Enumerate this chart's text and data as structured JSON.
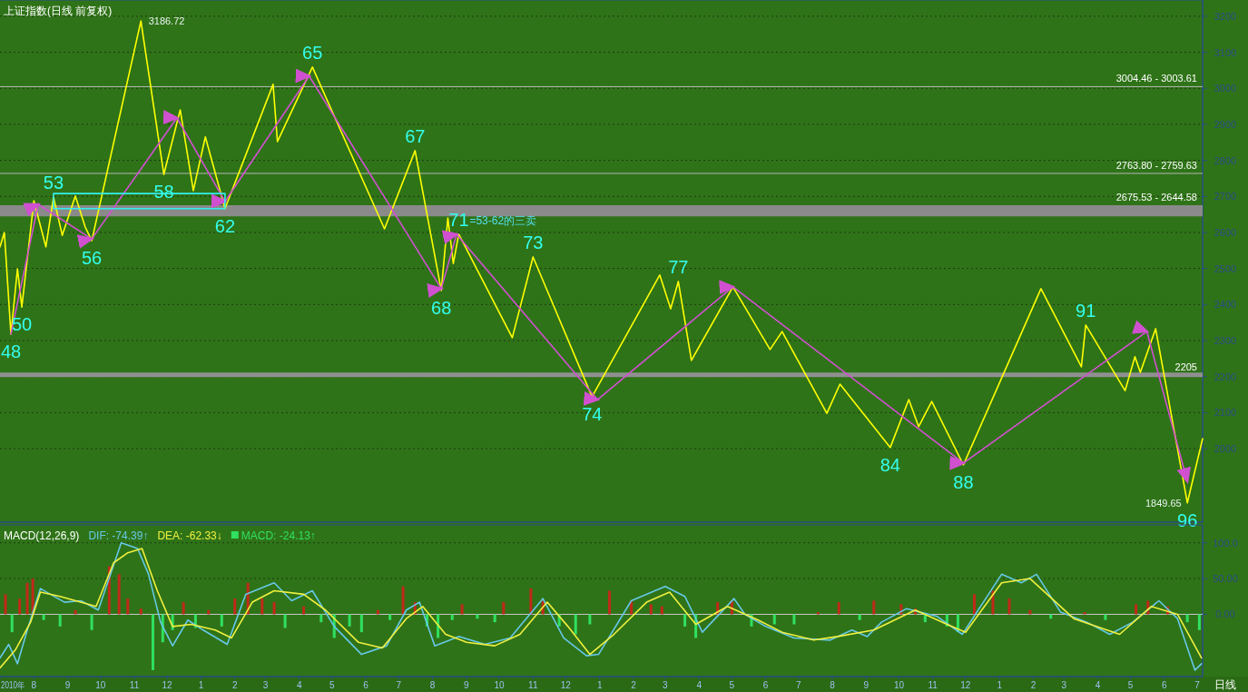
{
  "chart_data": [
    {
      "type": "line",
      "title": "上证指数(日线 前复权)",
      "xlim": [
        "2010-07-01",
        "2013-07-06"
      ],
      "ylim": [
        1796,
        3245
      ],
      "yticks": [
        2000,
        2100,
        2200,
        2300,
        2400,
        2500,
        2600,
        2700,
        2800,
        2900,
        3000,
        3100,
        3200
      ],
      "grid": "y",
      "tick_labels": "y",
      "series": [
        {
          "color": "#ffff00",
          "x": [
            "2010-07-01",
            "2010-07-05",
            "2010-07-11",
            "2010-07-17",
            "2010-07-21",
            "2010-08-01",
            "2010-08-12",
            "2010-08-19",
            "2010-08-27",
            "2010-09-08",
            "2010-09-17",
            "2010-09-23",
            "2010-11-07",
            "2010-11-28",
            "2010-12-13",
            "2010-12-25",
            "2011-01-05",
            "2011-01-23",
            "2011-03-08",
            "2011-03-12",
            "2011-04-13",
            "2011-06-18",
            "2011-07-16",
            "2011-08-09",
            "2011-08-15",
            "2011-08-20",
            "2011-08-25",
            "2011-10-13",
            "2011-11-01",
            "2011-12-25",
            "2012-02-25",
            "2012-03-06",
            "2012-03-13",
            "2012-03-25",
            "2012-05-02",
            "2012-06-05",
            "2012-06-16",
            "2012-07-27",
            "2012-08-08",
            "2012-09-23",
            "2012-10-10",
            "2012-10-19",
            "2012-10-31",
            "2012-11-29",
            "2013-02-08",
            "2013-03-17",
            "2013-03-21",
            "2013-04-26",
            "2013-05-05",
            "2013-05-10",
            "2013-05-24",
            "2013-06-22",
            "2013-07-06"
          ],
          "values": [
            2560,
            2600,
            2318,
            2499,
            2393,
            2688,
            2560,
            2698,
            2592,
            2701,
            2615,
            2577,
            3186.72,
            2761,
            2940,
            2716,
            2865,
            2666,
            3011,
            2852,
            3059,
            2610,
            2827,
            2439,
            2640,
            2514,
            2595,
            2308,
            2532,
            2144,
            2482,
            2388,
            2464,
            2245,
            2449,
            2275,
            2325,
            2098,
            2179,
            2003,
            2136,
            2061,
            2131,
            1955,
            2444,
            2227,
            2343,
            2161,
            2255,
            2212,
            2333,
            1849.65,
            2028
          ]
        },
        {
          "color": "#d050d0",
          "x": [
            "2010-07-11",
            "2010-08-05",
            "2010-09-23",
            "2010-12-10",
            "2011-01-23",
            "2011-04-10",
            "2011-08-09",
            "2011-08-23",
            "2011-12-30",
            "2012-05-02",
            "2012-11-29",
            "2013-05-16",
            "2013-06-22"
          ],
          "values": [
            2318,
            2678,
            2582,
            2918,
            2686,
            3034,
            2444,
            2595,
            2136,
            2449,
            1960,
            2325,
            1909
          ]
        },
        {
          "color": "#33eeee",
          "x": [
            "2010-08-19",
            "2011-01-23"
          ],
          "values": [
            2708,
            2708
          ]
        },
        {
          "color": "#33eeee",
          "x": [
            "2010-08-19",
            "2011-01-23"
          ],
          "values": [
            2666,
            2666
          ]
        }
      ],
      "ref_lines": [
        {
          "axis": "y",
          "value": 3004.46,
          "label": "3004.46 - 3003.61",
          "color": "#b8b8b8"
        },
        {
          "axis": "y",
          "value": 2763.8,
          "label": "2763.80 - 2759.63",
          "color": "#b8b8b8"
        },
        {
          "axis": "y",
          "value": 2205,
          "label": "2205",
          "color": "#909090"
        }
      ],
      "bands": [
        {
          "axis": "y",
          "from": 2644.58,
          "to": 2675.53,
          "label": "2675.53 - 2644.58",
          "color": "#8a8a8a"
        }
      ],
      "annotations": [
        {
          "text": "48",
          "x": "2010-07-11",
          "y": 2318
        },
        {
          "text": "50",
          "x": "2010-07-21",
          "y": 2393
        },
        {
          "text": "53",
          "x": "2010-08-19",
          "y": 2698
        },
        {
          "text": "56",
          "x": "2010-09-23",
          "y": 2577
        },
        {
          "text": "58",
          "x": "2010-11-28",
          "y": 2761
        },
        {
          "text": "62",
          "x": "2011-01-23",
          "y": 2666
        },
        {
          "text": "65",
          "x": "2011-04-13",
          "y": 3059
        },
        {
          "text": "67",
          "x": "2011-07-16",
          "y": 2827
        },
        {
          "text": "68",
          "x": "2011-08-09",
          "y": 2439
        },
        {
          "text": "71",
          "x": "2011-08-25",
          "y": 2595
        },
        "=53-62的三卖",
        {
          "text": "73",
          "x": "2011-11-01",
          "y": 2532
        },
        {
          "text": "74",
          "x": "2011-12-25",
          "y": 2144
        },
        {
          "text": "77",
          "x": "2012-03-13",
          "y": 2464
        },
        {
          "text": "84",
          "x": "2012-09-23",
          "y": 2003
        },
        {
          "text": "88",
          "x": "2012-11-29",
          "y": 1955
        },
        {
          "text": "91",
          "x": "2013-03-21",
          "y": 2343
        },
        {
          "text": "96",
          "x": "2013-06-22",
          "y": 1849.65
        },
        {
          "text": "3186.72",
          "x": "2010-11-09",
          "y": 3186.72
        },
        {
          "text": "1849.65",
          "x": "2013-06-20",
          "y": 1849.65
        }
      ]
    },
    {
      "type": "line",
      "title": "MACD(12,26,9)",
      "xlim": [
        "2010-07-01",
        "2013-07-06"
      ],
      "ylim": [
        -87,
        125
      ],
      "yticks": [
        {
          "value": 0,
          "label": "0.00"
        },
        {
          "value": 50,
          "label": "50.00"
        },
        {
          "value": 100,
          "label": "100.0"
        }
      ],
      "grid": "y",
      "legend": "top left",
      "annotations": [
        "日线"
      ],
      "xticks": [
        {
          "value": "2010-07-01",
          "label": "2010年"
        },
        {
          "value": "2010-08-01",
          "label": "8"
        },
        {
          "value": "2010-09-01",
          "label": "9"
        },
        {
          "value": "2010-10-01",
          "label": "10"
        },
        {
          "value": "2010-11-01",
          "label": "11"
        },
        {
          "value": "2010-12-01",
          "label": "12"
        },
        {
          "value": "2011-01-01",
          "label": "1"
        },
        {
          "value": "2011-02-01",
          "label": "2"
        },
        {
          "value": "2011-03-01",
          "label": "3"
        },
        {
          "value": "2011-04-01",
          "label": "4"
        },
        {
          "value": "2011-05-01",
          "label": "5"
        },
        {
          "value": "2011-06-01",
          "label": "6"
        },
        {
          "value": "2011-07-01",
          "label": "7"
        },
        {
          "value": "2011-08-01",
          "label": "8"
        },
        {
          "value": "2011-09-01",
          "label": "9"
        },
        {
          "value": "2011-10-01",
          "label": "10"
        },
        {
          "value": "2011-11-01",
          "label": "11"
        },
        {
          "value": "2011-12-01",
          "label": "12"
        },
        {
          "value": "2012-01-01",
          "label": "1"
        },
        {
          "value": "2012-02-01",
          "label": "2"
        },
        {
          "value": "2012-03-01",
          "label": "3"
        },
        {
          "value": "2012-04-01",
          "label": "4"
        },
        {
          "value": "2012-05-01",
          "label": "5"
        },
        {
          "value": "2012-06-01",
          "label": "6"
        },
        {
          "value": "2012-07-01",
          "label": "7"
        },
        {
          "value": "2012-08-01",
          "label": "8"
        },
        {
          "value": "2012-09-01",
          "label": "9"
        },
        {
          "value": "2012-10-01",
          "label": "10"
        },
        {
          "value": "2012-11-01",
          "label": "11"
        },
        {
          "value": "2012-12-01",
          "label": "12"
        },
        {
          "value": "2013-01-01",
          "label": "1"
        },
        {
          "value": "2013-02-01",
          "label": "2"
        },
        {
          "value": "2013-03-01",
          "label": "3"
        },
        {
          "value": "2013-04-01",
          "label": "4"
        },
        {
          "value": "2013-05-01",
          "label": "5"
        },
        {
          "value": "2013-06-01",
          "label": "6"
        },
        {
          "value": "2013-07-01",
          "label": "7"
        }
      ],
      "series": [
        {
          "name": "MACD: -24.13↑",
          "type": "bar",
          "x": [
            "2010-07-06",
            "2010-07-12",
            "2010-07-19",
            "2010-07-26",
            "2010-07-31",
            "2010-08-10",
            "2010-08-25",
            "2010-09-08",
            "2010-09-23",
            "2010-10-09",
            "2010-10-18",
            "2010-10-26",
            "2010-11-07",
            "2010-11-18",
            "2010-11-27",
            "2010-12-06",
            "2010-12-16",
            "2010-12-27",
            "2011-01-08",
            "2011-01-20",
            "2011-02-01",
            "2011-02-13",
            "2011-02-26",
            "2011-03-09",
            "2011-03-19",
            "2011-04-05",
            "2011-04-21",
            "2011-05-03",
            "2011-05-17",
            "2011-05-28",
            "2011-06-12",
            "2011-06-23",
            "2011-07-05",
            "2011-07-16",
            "2011-07-27",
            "2011-08-06",
            "2011-08-19",
            "2011-08-28",
            "2011-09-11",
            "2011-09-27",
            "2011-10-05",
            "2011-10-30",
            "2011-11-10",
            "2011-11-25",
            "2011-12-10",
            "2011-12-23",
            "2012-01-10",
            "2012-01-30",
            "2012-02-17",
            "2012-02-27",
            "2012-03-19",
            "2012-03-29",
            "2012-04-18",
            "2012-05-01",
            "2012-05-19",
            "2012-06-09",
            "2012-06-27",
            "2012-07-19",
            "2012-08-07",
            "2012-08-26",
            "2012-09-08",
            "2012-10-03",
            "2012-10-16",
            "2012-10-25",
            "2012-11-14",
            "2012-11-24",
            "2012-12-09",
            "2012-12-26",
            "2013-01-10",
            "2013-01-29",
            "2013-02-17",
            "2013-03-20",
            "2013-04-08",
            "2013-05-06",
            "2013-05-17",
            "2013-06-04",
            "2013-06-22",
            "2013-07-03"
          ],
          "values": [
            28,
            -25,
            22,
            44,
            50,
            -8,
            -17,
            6,
            -22,
            67,
            56,
            22,
            8,
            -78,
            -39,
            -22,
            17,
            -19,
            6,
            -17,
            22,
            44,
            22,
            17,
            -19,
            11,
            -11,
            -33,
            -17,
            -25,
            6,
            -8,
            39,
            17,
            -17,
            -33,
            -8,
            14,
            -6,
            -11,
            17,
            36,
            19,
            -17,
            -28,
            -14,
            33,
            19,
            14,
            11,
            -17,
            -33,
            17,
            19,
            -17,
            -14,
            -14,
            3,
            17,
            -8,
            19,
            14,
            8,
            -11,
            -17,
            -25,
            28,
            33,
            22,
            6,
            -6,
            3,
            -8,
            14,
            19,
            11,
            -11,
            -22
          ],
          "colors": [
            "#c02a18",
            "#30e060",
            "#c02a18",
            "#c02a18",
            "#c02a18",
            "#30e060",
            "#30e060",
            "#c02a18",
            "#30e060",
            "#c02a18",
            "#c02a18",
            "#c02a18",
            "#c02a18",
            "#30e060",
            "#30e060",
            "#30e060",
            "#c02a18",
            "#30e060",
            "#c02a18",
            "#30e060",
            "#c02a18",
            "#c02a18",
            "#c02a18",
            "#c02a18",
            "#30e060",
            "#c02a18",
            "#30e060",
            "#30e060",
            "#30e060",
            "#30e060",
            "#c02a18",
            "#30e060",
            "#c02a18",
            "#c02a18",
            "#30e060",
            "#30e060",
            "#30e060",
            "#c02a18",
            "#30e060",
            "#30e060",
            "#c02a18",
            "#c02a18",
            "#c02a18",
            "#30e060",
            "#30e060",
            "#30e060",
            "#c02a18",
            "#c02a18",
            "#c02a18",
            "#c02a18",
            "#30e060",
            "#30e060",
            "#c02a18",
            "#c02a18",
            "#30e060",
            "#30e060",
            "#30e060",
            "#c02a18",
            "#c02a18",
            "#30e060",
            "#c02a18",
            "#c02a18",
            "#c02a18",
            "#30e060",
            "#30e060",
            "#30e060",
            "#c02a18",
            "#c02a18",
            "#c02a18",
            "#c02a18",
            "#30e060",
            "#c02a18",
            "#30e060",
            "#c02a18",
            "#c02a18",
            "#c02a18",
            "#30e060",
            "#30e060"
          ],
          "color": "#30e060"
        },
        {
          "name": "DIF: -74.39↑",
          "color": "#66c8e8",
          "x": [
            "2010-07-01",
            "2010-07-09",
            "2010-07-17",
            "2010-07-26",
            "2010-08-07",
            "2010-08-29",
            "2010-09-13",
            "2010-09-29",
            "2010-10-20",
            "2010-11-04",
            "2010-11-14",
            "2010-11-25",
            "2010-12-06",
            "2010-12-20",
            "2011-01-03",
            "2011-01-25",
            "2011-02-11",
            "2011-03-09",
            "2011-03-25",
            "2011-04-13",
            "2011-05-03",
            "2011-05-28",
            "2011-06-20",
            "2011-07-08",
            "2011-07-20",
            "2011-08-03",
            "2011-08-25",
            "2011-09-18",
            "2011-10-11",
            "2011-11-10",
            "2011-11-29",
            "2011-12-20",
            "2011-12-31",
            "2012-01-30",
            "2012-03-01",
            "2012-03-19",
            "2012-04-04",
            "2012-05-03",
            "2012-05-13",
            "2012-06-01",
            "2012-06-27",
            "2012-07-30",
            "2012-08-19",
            "2012-09-02",
            "2012-09-15",
            "2012-10-08",
            "2012-11-05",
            "2012-11-28",
            "2013-01-03",
            "2013-01-21",
            "2013-02-04",
            "2013-02-26",
            "2013-03-22",
            "2013-04-12",
            "2013-05-03",
            "2013-05-27",
            "2013-06-13",
            "2013-06-29",
            "2013-07-05"
          ],
          "values": [
            -61,
            -42,
            -69,
            -22,
            36,
            17,
            19,
            6,
            100,
            92,
            56,
            -11,
            -44,
            -8,
            -22,
            -42,
            28,
            44,
            19,
            33,
            -17,
            -56,
            -44,
            6,
            17,
            -44,
            -31,
            -42,
            -33,
            22,
            -33,
            -58,
            -56,
            19,
            39,
            25,
            -25,
            22,
            0,
            -17,
            -33,
            -36,
            -22,
            -31,
            -11,
            8,
            -3,
            -28,
            56,
            44,
            56,
            3,
            -11,
            -28,
            -11,
            19,
            -6,
            -78,
            -69
          ]
        },
        {
          "name": "DEA: -62.33↓",
          "color": "#f0f040",
          "x": [
            "2010-07-01",
            "2010-07-15",
            "2010-07-29",
            "2010-08-07",
            "2010-08-25",
            "2010-09-27",
            "2010-10-13",
            "2010-10-26",
            "2010-11-08",
            "2010-11-22",
            "2010-12-06",
            "2010-12-23",
            "2011-01-14",
            "2011-01-29",
            "2011-02-17",
            "2011-03-09",
            "2011-04-05",
            "2011-04-25",
            "2011-05-25",
            "2011-06-16",
            "2011-07-08",
            "2011-07-23",
            "2011-08-13",
            "2011-09-01",
            "2011-09-27",
            "2011-10-20",
            "2011-11-14",
            "2011-12-03",
            "2011-12-23",
            "2012-01-14",
            "2012-02-13",
            "2012-03-05",
            "2012-03-29",
            "2012-04-27",
            "2012-05-25",
            "2012-06-16",
            "2012-07-15",
            "2012-08-06",
            "2012-09-08",
            "2012-10-16",
            "2012-11-14",
            "2012-12-01",
            "2013-01-03",
            "2013-01-29",
            "2013-03-10",
            "2013-04-21",
            "2013-05-20",
            "2013-06-13",
            "2013-07-05"
          ],
          "values": [
            -75,
            -50,
            -11,
            31,
            25,
            11,
            72,
            86,
            92,
            33,
            -17,
            -14,
            -22,
            -33,
            17,
            33,
            28,
            6,
            -39,
            -47,
            -6,
            11,
            -28,
            -39,
            -44,
            -28,
            17,
            -17,
            -56,
            -28,
            17,
            31,
            -14,
            11,
            -8,
            -25,
            -36,
            -31,
            -22,
            6,
            -14,
            -25,
            44,
            50,
            -6,
            -28,
            11,
            0,
            -61
          ]
        }
      ]
    }
  ]
}
